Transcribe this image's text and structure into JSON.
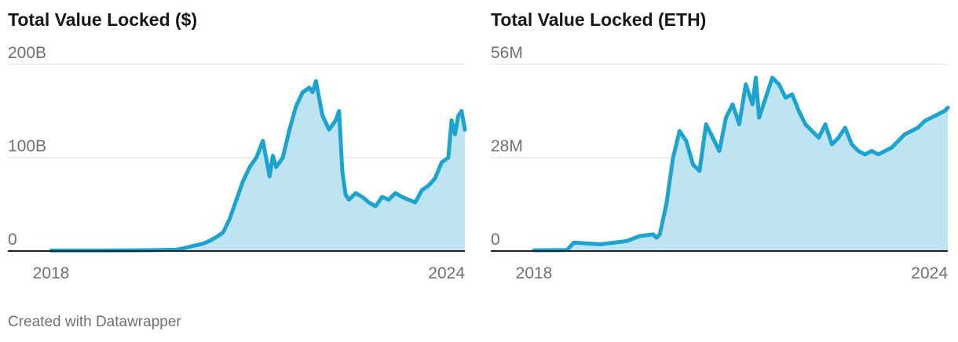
{
  "footer": {
    "credit": "Created with Datawrapper"
  },
  "colors": {
    "line": "#1ca3cf",
    "area": "#bde4f0",
    "grid": "#dddddd",
    "axis": "#222222",
    "tick_text": "#707070",
    "title": "#181818"
  },
  "chart_data": [
    {
      "type": "area",
      "title": "Total Value Locked ($)",
      "x_tick_labels": [
        "2018",
        "2024"
      ],
      "y_tick_labels": [
        "200B",
        "100B",
        "0"
      ],
      "y_ticks": [
        200,
        100,
        0
      ],
      "ylim": [
        0,
        200
      ],
      "xlim": [
        2018.0,
        2024.25
      ],
      "y_unit": "B",
      "grid": true,
      "x": [
        2018.0,
        2019.0,
        2019.5,
        2019.9,
        2020.0,
        2020.3,
        2020.4,
        2020.5,
        2020.6,
        2020.7,
        2020.8,
        2020.9,
        2021.0,
        2021.1,
        2021.2,
        2021.3,
        2021.35,
        2021.4,
        2021.5,
        2021.6,
        2021.7,
        2021.8,
        2021.9,
        2021.95,
        2022.0,
        2022.1,
        2022.2,
        2022.3,
        2022.35,
        2022.4,
        2022.45,
        2022.5,
        2022.6,
        2022.7,
        2022.8,
        2022.9,
        2023.0,
        2023.1,
        2023.2,
        2023.3,
        2023.4,
        2023.5,
        2023.6,
        2023.7,
        2023.8,
        2023.9,
        2024.0,
        2024.05,
        2024.1,
        2024.15,
        2024.2,
        2024.25
      ],
      "y": [
        0.5,
        0.6,
        0.8,
        1.5,
        3,
        8,
        11,
        15,
        20,
        35,
        55,
        75,
        90,
        100,
        118,
        80,
        102,
        90,
        100,
        130,
        155,
        170,
        175,
        170,
        182,
        145,
        130,
        140,
        150,
        85,
        60,
        55,
        62,
        58,
        52,
        48,
        58,
        55,
        62,
        58,
        55,
        52,
        65,
        70,
        78,
        95,
        100,
        140,
        125,
        145,
        150,
        130
      ]
    },
    {
      "type": "area",
      "title": "Total Value Locked (ETH)",
      "x_tick_labels": [
        "2018",
        "2024"
      ],
      "y_tick_labels": [
        "56M",
        "28M",
        "0"
      ],
      "y_ticks": [
        56,
        28,
        0
      ],
      "ylim": [
        0,
        56
      ],
      "xlim": [
        2018.0,
        2024.25
      ],
      "y_unit": "M",
      "grid": true,
      "x": [
        2018.0,
        2018.5,
        2018.6,
        2018.7,
        2019.0,
        2019.4,
        2019.6,
        2019.8,
        2019.85,
        2019.9,
        2020.0,
        2020.1,
        2020.2,
        2020.3,
        2020.4,
        2020.5,
        2020.6,
        2020.7,
        2020.8,
        2020.9,
        2021.0,
        2021.1,
        2021.2,
        2021.3,
        2021.35,
        2021.4,
        2021.5,
        2021.6,
        2021.7,
        2021.8,
        2021.9,
        2022.0,
        2022.1,
        2022.2,
        2022.3,
        2022.4,
        2022.5,
        2022.6,
        2022.7,
        2022.8,
        2022.9,
        2023.0,
        2023.1,
        2023.2,
        2023.3,
        2023.4,
        2023.5,
        2023.6,
        2023.7,
        2023.8,
        2023.9,
        2024.0,
        2024.1,
        2024.2,
        2024.25
      ],
      "y": [
        0.2,
        0.3,
        2.5,
        2.4,
        2.0,
        3.0,
        4.5,
        5.0,
        4.0,
        5.0,
        14,
        28,
        36,
        33,
        26,
        24,
        38,
        34,
        30,
        40,
        44,
        38,
        50,
        44,
        52,
        40,
        46,
        52,
        50,
        46,
        47,
        42,
        38,
        36,
        34,
        38,
        32,
        34,
        37,
        32,
        30,
        29,
        30,
        29,
        30,
        31,
        33,
        35,
        36,
        37,
        39,
        40,
        41,
        42,
        43
      ]
    }
  ]
}
